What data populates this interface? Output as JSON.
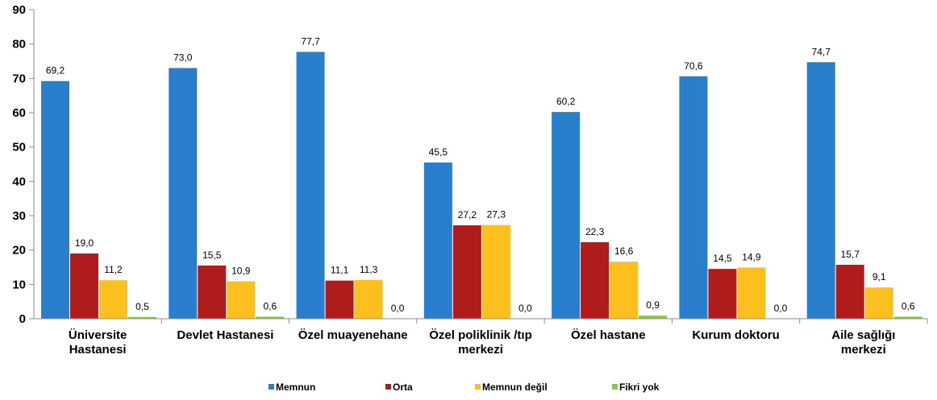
{
  "chart_data": {
    "type": "bar",
    "categories": [
      [
        "Üniversite",
        "Hastanesi"
      ],
      [
        "Devlet Hastanesi"
      ],
      [
        "Özel muayenehane"
      ],
      [
        "Özel poliklinik /tıp",
        "merkezi"
      ],
      [
        "Özel hastane"
      ],
      [
        "Kurum doktoru"
      ],
      [
        "Aile sağlığı",
        "merkezi"
      ]
    ],
    "series": [
      {
        "name": "Memnun",
        "color": "#2a7fcc",
        "values": [
          69.2,
          73.0,
          77.7,
          45.5,
          60.2,
          70.6,
          74.7
        ],
        "labels": [
          "69,2",
          "73,0",
          "77,7",
          "45,5",
          "60,2",
          "70,6",
          "74,7"
        ]
      },
      {
        "name": "Orta",
        "color": "#b01c1c",
        "values": [
          19.0,
          15.5,
          11.1,
          27.2,
          22.3,
          14.5,
          15.7
        ],
        "labels": [
          "19,0",
          "15,5",
          "11,1",
          "27,2",
          "22,3",
          "14,5",
          "15,7"
        ]
      },
      {
        "name": "Memnun değil",
        "color": "#fbbf1e",
        "values": [
          11.2,
          10.9,
          11.3,
          27.3,
          16.6,
          14.9,
          9.1
        ],
        "labels": [
          "11,2",
          "10,9",
          "11,3",
          "27,3",
          "16,6",
          "14,9",
          "9,1"
        ]
      },
      {
        "name": "Fikri yok",
        "color": "#8fc641",
        "values": [
          0.5,
          0.6,
          0.0,
          0.0,
          0.9,
          0.0,
          0.6
        ],
        "labels": [
          "0,5",
          "0,6",
          "0,0",
          "0,0",
          "0,9",
          "0,0",
          "0,6"
        ]
      }
    ],
    "ylim": [
      0,
      90
    ],
    "yticks": [
      0,
      10,
      20,
      30,
      40,
      50,
      60,
      70,
      80,
      90
    ],
    "grid": false,
    "legend_position": "bottom"
  }
}
